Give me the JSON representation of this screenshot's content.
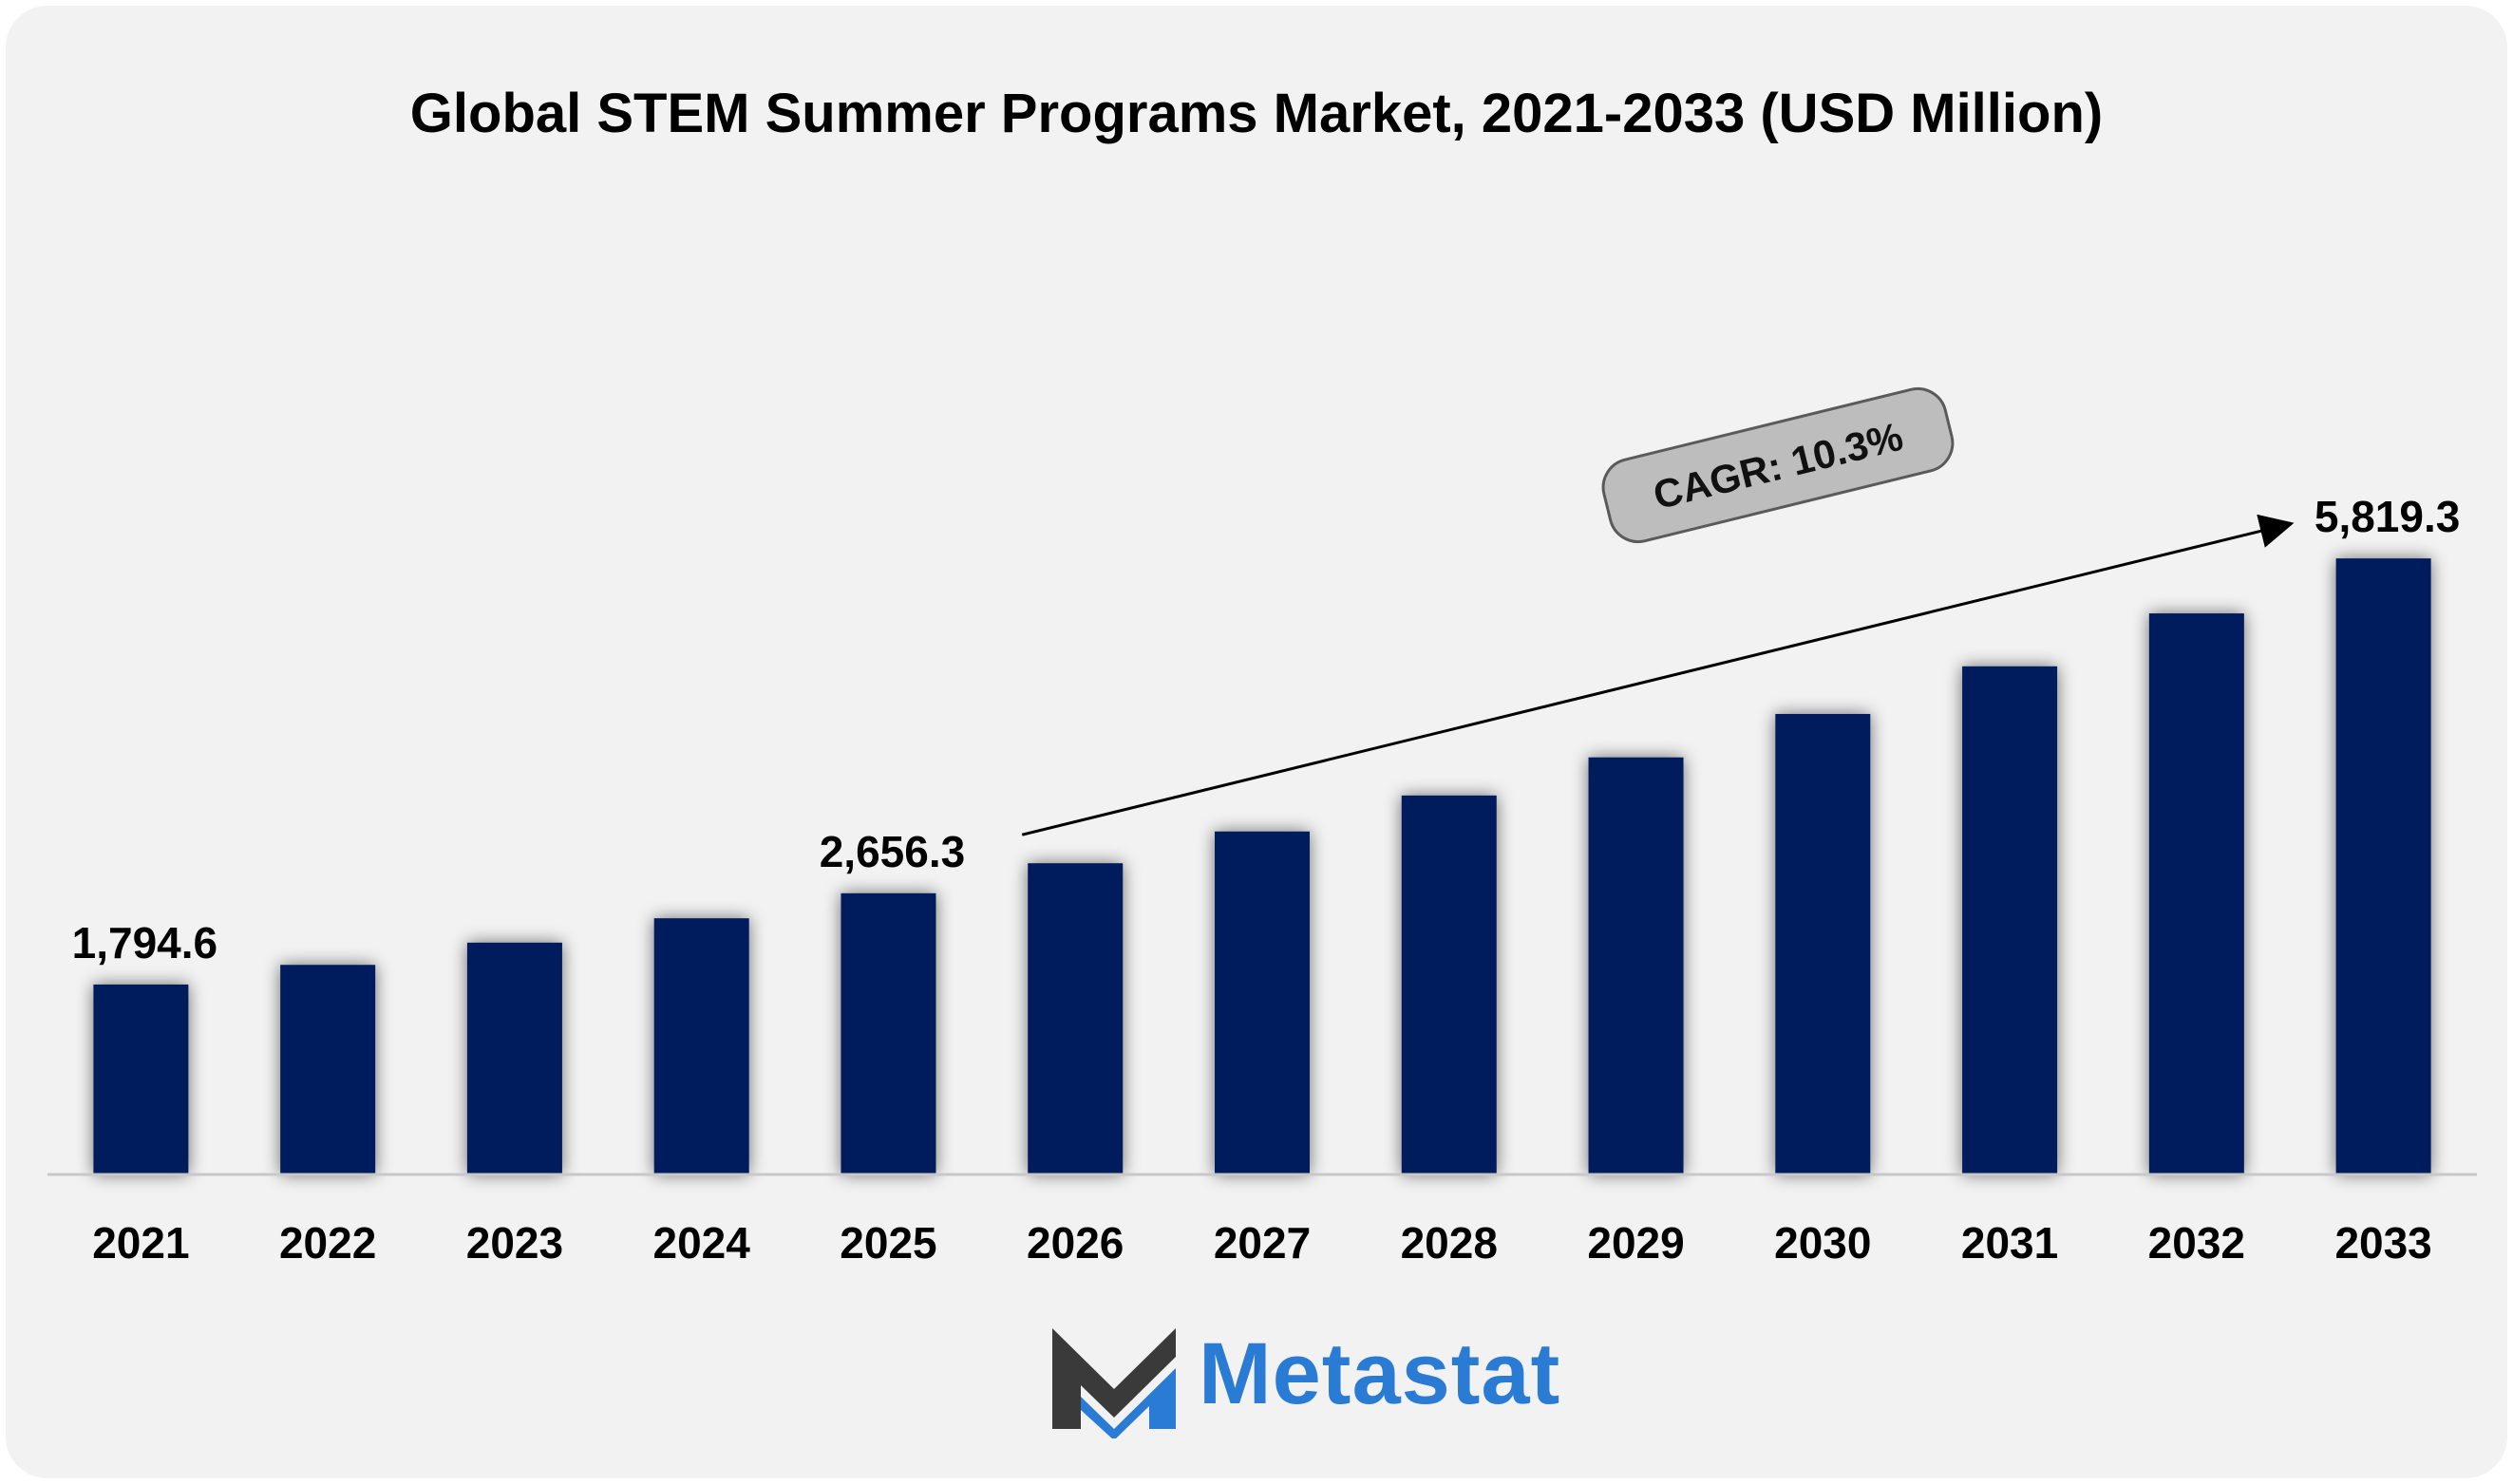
{
  "title": "Global STEM Summer Programs Market, 2021-2033 (USD Million)",
  "colors": {
    "bar": "#001f5c",
    "background": "#f2f2f2",
    "logo_dark": "#3a3a3a",
    "logo_blue": "#2a7bd3"
  },
  "logo": {
    "text": "Metastat",
    "icon": "metastat-m-logo-icon"
  },
  "cagr": {
    "label": "CAGR: 10.3%",
    "from_year": "2026",
    "to_year": "2033"
  },
  "chart_data": {
    "type": "bar",
    "title": "Global STEM Summer Programs Market, 2021-2033 (USD Million)",
    "xlabel": "",
    "ylabel": "",
    "categories": [
      "2021",
      "2022",
      "2023",
      "2024",
      "2025",
      "2026",
      "2027",
      "2028",
      "2029",
      "2030",
      "2031",
      "2032",
      "2033"
    ],
    "values": [
      1794.6,
      1980,
      2190,
      2420,
      2656.3,
      2940,
      3240,
      3580,
      3940,
      4350,
      4800,
      5300,
      5819.3
    ],
    "data_labels": [
      {
        "index": 0,
        "text": "1,794.6"
      },
      {
        "index": 4,
        "text": "2,656.3"
      },
      {
        "index": 12,
        "text": "5,819.3"
      }
    ],
    "ylim": [
      0,
      6500
    ],
    "grid": false,
    "legend": "none"
  }
}
